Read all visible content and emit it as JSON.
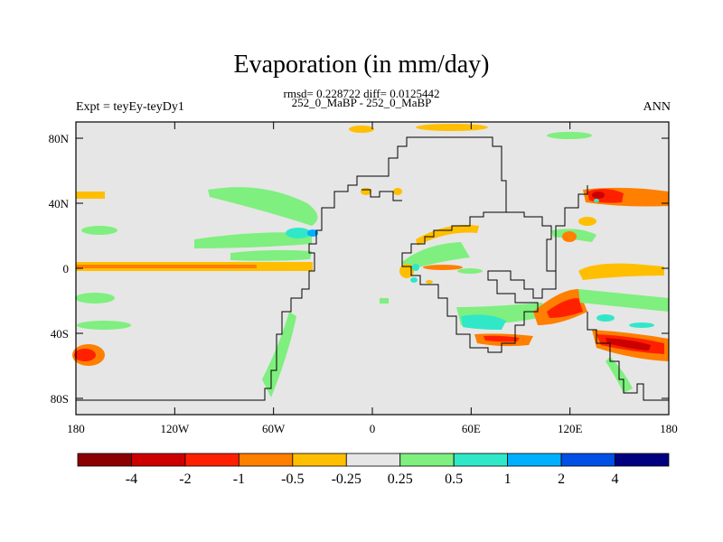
{
  "title": "Evaporation (in mm/day)",
  "stats": "rmsd= 0.228722 diff= 0.0125442",
  "subtitle": "252_0_MaBP - 252_0_MaBP",
  "experiment": "Expt = teyEy-teyDy1",
  "season": "ANN",
  "map": {
    "lon_ticks": [
      "180",
      "120W",
      "60W",
      "0",
      "60E",
      "120E",
      "180"
    ],
    "lat_ticks": [
      "80N",
      "40N",
      "0",
      "40S",
      "80S"
    ],
    "lon_range": [
      -180,
      180
    ],
    "lat_range": [
      -90,
      90
    ],
    "background_color": "#e6e6e6"
  },
  "colorbar": {
    "labels": [
      "-4",
      "-2",
      "-1",
      "-0.5",
      "-0.25",
      "0.25",
      "0.5",
      "1",
      "2",
      "4"
    ],
    "colors": [
      "#8b0000",
      "#cc0000",
      "#ff2000",
      "#ff7f00",
      "#ffbf00",
      "#e6e6e6",
      "#7fef7f",
      "#30e8c8",
      "#00b0ff",
      "#0050e6",
      "#000080"
    ]
  }
}
